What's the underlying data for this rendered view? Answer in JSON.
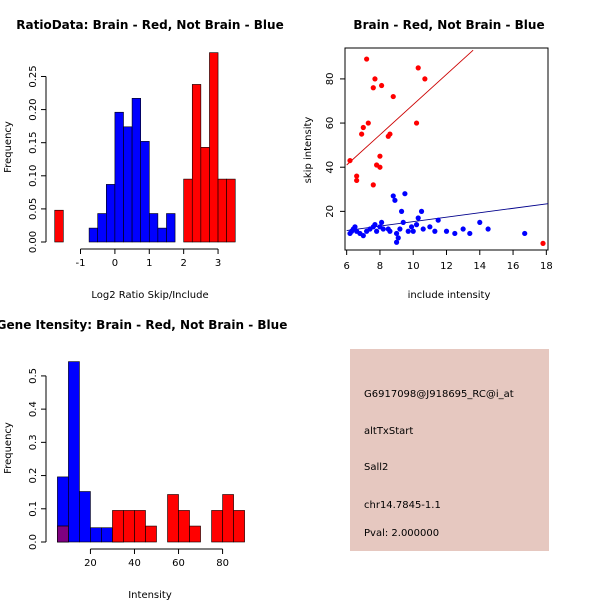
{
  "colors": {
    "red": "#ff0000",
    "blue": "#0000ff",
    "overlap": "#7f0080",
    "panel": "#e6c8c0",
    "pval": "#c00000",
    "red_line": "#cc0000",
    "blue_line": "#00008b"
  },
  "chart_data": [
    {
      "id": "ratio-hist",
      "type": "bar",
      "title": "RatioData: Brain - Red, Not Brain - Blue",
      "xlabel": "Log2 Ratio Skip/Include",
      "ylabel": "Frequency",
      "xlim": [
        -1.8,
        3.9
      ],
      "ylim": [
        0,
        0.29
      ],
      "xticks": [
        -1,
        0,
        1,
        2,
        3
      ],
      "yticks": [
        0,
        0.05,
        0.1,
        0.15,
        0.2,
        0.25
      ],
      "ytick_labels": [
        "0.00",
        "0.05",
        "0.10",
        "0.15",
        "0.20",
        "0.25"
      ],
      "series": [
        {
          "name": "Brain",
          "color": "red",
          "bins": [
            {
              "x0": -1.75,
              "x1": -1.5,
              "y": 0.048
            },
            {
              "x0": 2.0,
              "x1": 2.25,
              "y": 0.095
            },
            {
              "x0": 2.25,
              "x1": 2.5,
              "y": 0.238
            },
            {
              "x0": 2.5,
              "x1": 2.75,
              "y": 0.143
            },
            {
              "x0": 2.75,
              "x1": 3.0,
              "y": 0.286
            },
            {
              "x0": 3.0,
              "x1": 3.25,
              "y": 0.095
            },
            {
              "x0": 3.25,
              "x1": 3.5,
              "y": 0.095
            }
          ]
        },
        {
          "name": "Not Brain",
          "color": "blue",
          "bins": [
            {
              "x0": -0.75,
              "x1": -0.5,
              "y": 0.021
            },
            {
              "x0": -0.5,
              "x1": -0.25,
              "y": 0.043
            },
            {
              "x0": -0.25,
              "x1": 0.0,
              "y": 0.087
            },
            {
              "x0": 0.0,
              "x1": 0.25,
              "y": 0.196
            },
            {
              "x0": 0.25,
              "x1": 0.5,
              "y": 0.174
            },
            {
              "x0": 0.5,
              "x1": 0.75,
              "y": 0.217
            },
            {
              "x0": 0.75,
              "x1": 1.0,
              "y": 0.152
            },
            {
              "x0": 1.0,
              "x1": 1.25,
              "y": 0.043
            },
            {
              "x0": 1.25,
              "x1": 1.5,
              "y": 0.021
            },
            {
              "x0": 1.5,
              "x1": 1.75,
              "y": 0.043
            }
          ]
        }
      ]
    },
    {
      "id": "scatter",
      "type": "scatter",
      "title": "Brain - Red, Not Brain - Blue",
      "xlabel": "include intensity",
      "ylabel": "skip intensity",
      "xlim": [
        5.9,
        18.1
      ],
      "ylim": [
        2.5,
        94
      ],
      "xticks": [
        6,
        8,
        10,
        12,
        14,
        16,
        18
      ],
      "yticks": [
        20,
        40,
        60,
        80
      ],
      "series": [
        {
          "name": "Brain",
          "color": "red",
          "points": [
            [
              6.2,
              43
            ],
            [
              6.6,
              36
            ],
            [
              6.6,
              34
            ],
            [
              6.9,
              55
            ],
            [
              7.0,
              58
            ],
            [
              7.3,
              60
            ],
            [
              7.2,
              89
            ],
            [
              7.6,
              76
            ],
            [
              7.7,
              80
            ],
            [
              7.6,
              32
            ],
            [
              7.8,
              41
            ],
            [
              8.0,
              45
            ],
            [
              8.0,
              40
            ],
            [
              8.1,
              77
            ],
            [
              8.5,
              54
            ],
            [
              8.6,
              55
            ],
            [
              8.8,
              72
            ],
            [
              10.2,
              60
            ],
            [
              10.3,
              85
            ],
            [
              10.7,
              80
            ],
            [
              17.8,
              5.5
            ]
          ],
          "fit": [
            [
              6.0,
              41
            ],
            [
              13.6,
              93
            ]
          ]
        },
        {
          "name": "Not Brain",
          "color": "blue",
          "points": [
            [
              6.2,
              10
            ],
            [
              6.3,
              11
            ],
            [
              6.4,
              12
            ],
            [
              6.5,
              13
            ],
            [
              6.6,
              11
            ],
            [
              6.8,
              10
            ],
            [
              7.0,
              9
            ],
            [
              7.2,
              11
            ],
            [
              7.4,
              12
            ],
            [
              7.6,
              13
            ],
            [
              7.7,
              14
            ],
            [
              7.8,
              11
            ],
            [
              8.0,
              13
            ],
            [
              8.1,
              15
            ],
            [
              8.2,
              12
            ],
            [
              8.5,
              12
            ],
            [
              8.6,
              11
            ],
            [
              8.8,
              27
            ],
            [
              8.9,
              25
            ],
            [
              9.0,
              10
            ],
            [
              9.0,
              6
            ],
            [
              9.1,
              8
            ],
            [
              9.2,
              12
            ],
            [
              9.3,
              20
            ],
            [
              9.4,
              15
            ],
            [
              9.5,
              28
            ],
            [
              9.7,
              11
            ],
            [
              9.9,
              13
            ],
            [
              10.0,
              11
            ],
            [
              10.2,
              14
            ],
            [
              10.3,
              17
            ],
            [
              10.5,
              20
            ],
            [
              10.6,
              12
            ],
            [
              11.0,
              13
            ],
            [
              11.3,
              11
            ],
            [
              11.5,
              16
            ],
            [
              12.0,
              11
            ],
            [
              12.5,
              10
            ],
            [
              13.0,
              12
            ],
            [
              13.4,
              10
            ],
            [
              14.0,
              15
            ],
            [
              14.5,
              12
            ],
            [
              16.7,
              10
            ]
          ],
          "fit": [
            [
              6.0,
              11.3
            ],
            [
              18.1,
              23.5
            ]
          ]
        }
      ]
    },
    {
      "id": "intensity-hist",
      "type": "bar",
      "title": "Gene Itensity: Brain - Red, Not Brain - Blue",
      "xlabel": "Intensity",
      "ylabel": "Frequency",
      "xlim": [
        3,
        92
      ],
      "ylim": [
        0,
        0.575
      ],
      "xticks": [
        20,
        40,
        60,
        80
      ],
      "yticks": [
        0,
        0.1,
        0.2,
        0.3,
        0.4,
        0.5
      ],
      "ytick_labels": [
        "0.0",
        "0.1",
        "0.2",
        "0.3",
        "0.4",
        "0.5"
      ],
      "series": [
        {
          "name": "Not Brain",
          "color": "blue",
          "bins": [
            {
              "x0": 5,
              "x1": 10,
              "y": 0.196
            },
            {
              "x0": 10,
              "x1": 15,
              "y": 0.543
            },
            {
              "x0": 15,
              "x1": 20,
              "y": 0.152
            },
            {
              "x0": 20,
              "x1": 25,
              "y": 0.043
            },
            {
              "x0": 25,
              "x1": 30,
              "y": 0.043
            },
            {
              "x0": 30,
              "x1": 35,
              "y": 0.022
            }
          ]
        },
        {
          "name": "Brain",
          "color": "red",
          "bins": [
            {
              "x0": 5,
              "x1": 10,
              "y": 0.048
            },
            {
              "x0": 30,
              "x1": 35,
              "y": 0.095
            },
            {
              "x0": 35,
              "x1": 40,
              "y": 0.095
            },
            {
              "x0": 40,
              "x1": 45,
              "y": 0.095
            },
            {
              "x0": 45,
              "x1": 50,
              "y": 0.048
            },
            {
              "x0": 55,
              "x1": 60,
              "y": 0.143
            },
            {
              "x0": 60,
              "x1": 65,
              "y": 0.095
            },
            {
              "x0": 65,
              "x1": 70,
              "y": 0.048
            },
            {
              "x0": 75,
              "x1": 80,
              "y": 0.095
            },
            {
              "x0": 80,
              "x1": 85,
              "y": 0.143
            },
            {
              "x0": 85,
              "x1": 90,
              "y": 0.095
            }
          ]
        }
      ],
      "overlap_bins": [
        {
          "x0": 5,
          "x1": 10,
          "y": 0.048
        }
      ]
    }
  ],
  "info": {
    "probe": "G6917098@J918695_RC@i_at",
    "event": "altTxStart",
    "gene": "Sall2",
    "location": "chr14.7845-1.1",
    "pval": "Pval: 2.000000"
  }
}
